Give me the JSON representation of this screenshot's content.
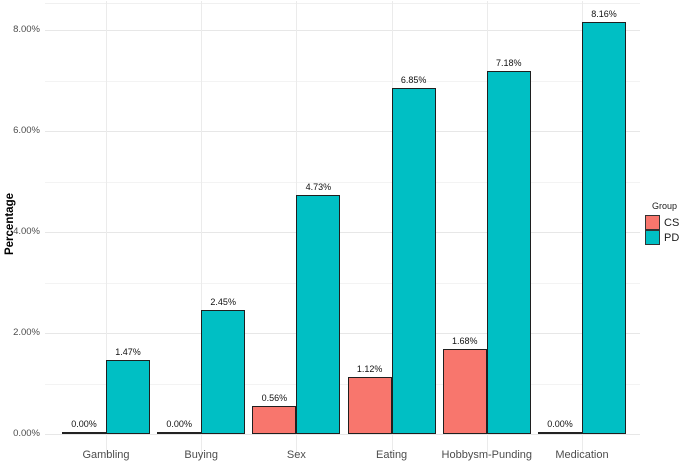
{
  "chart_data": {
    "type": "bar",
    "title": "",
    "xlabel": "",
    "ylabel": "Percentage",
    "categories": [
      "Gambling",
      "Buying",
      "Sex",
      "Eating",
      "Hobbysm-Punding",
      "Medication"
    ],
    "series": [
      {
        "name": "CS",
        "color": "#F8766D",
        "values": [
          0.0,
          0.0,
          0.56,
          1.12,
          1.68,
          0.0
        ],
        "labels": [
          "0.00%",
          "0.00%",
          "0.56%",
          "1.12%",
          "1.68%",
          "0.00%"
        ]
      },
      {
        "name": "PD",
        "color": "#00BFC4",
        "values": [
          1.47,
          2.45,
          4.73,
          6.85,
          7.18,
          8.16
        ],
        "labels": [
          "1.47%",
          "2.45%",
          "4.73%",
          "6.85%",
          "7.18%",
          "8.16%"
        ]
      }
    ],
    "y_axis": {
      "ticks": [
        0,
        2,
        4,
        6,
        8
      ],
      "tick_labels": [
        "0.00%",
        "2.00%",
        "4.00%",
        "6.00%",
        "8.00%"
      ],
      "minor_ticks": [
        1,
        3,
        5,
        7
      ],
      "ylim": [
        0,
        8.57
      ]
    },
    "legend": {
      "title": "Group",
      "position": "right",
      "entries": [
        {
          "label": "CS",
          "color": "#F8766D"
        },
        {
          "label": "PD",
          "color": "#00BFC4"
        }
      ]
    },
    "grid": true,
    "bar_outline_color": "#1f1f1f",
    "background_color": "#ffffff"
  }
}
